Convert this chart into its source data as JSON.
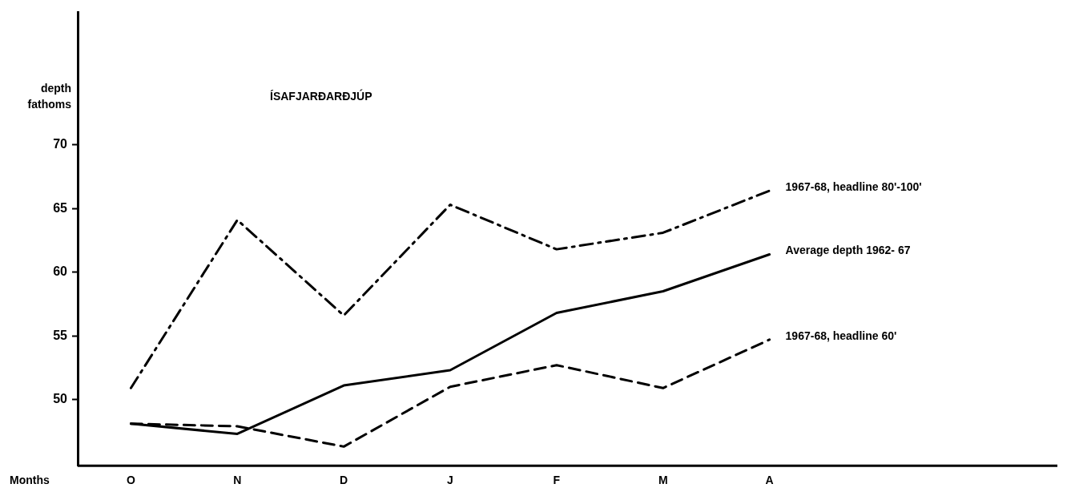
{
  "chart_data": {
    "type": "line",
    "title": "ÍSAFJARÐARÐJÚP",
    "xlabel": "Months",
    "ylabel": "depth fathoms",
    "categories": [
      "O",
      "N",
      "D",
      "J",
      "F",
      "M",
      "A"
    ],
    "series": [
      {
        "name": "1967-68, headline 80'-100'",
        "color": "#000000",
        "line_style": "dashdot",
        "values": [
          50.9,
          64.1,
          56.6,
          65.3,
          61.8,
          63.1,
          66.4
        ]
      },
      {
        "name": "Average depth 1962- 67",
        "color": "#000000",
        "line_style": "solid",
        "values": [
          48.1,
          47.3,
          51.1,
          52.3,
          56.8,
          58.5,
          61.4
        ]
      },
      {
        "name": "1967-68, headline 60'",
        "color": "#000000",
        "line_style": "dashed",
        "values": [
          48.1,
          47.9,
          46.3,
          51.0,
          52.7,
          50.9,
          54.7
        ]
      }
    ],
    "ylim": [
      44.8,
      80.4
    ],
    "yticks": [
      50,
      55,
      60,
      65,
      70
    ],
    "grid": false,
    "legend": false,
    "marker": "none"
  }
}
